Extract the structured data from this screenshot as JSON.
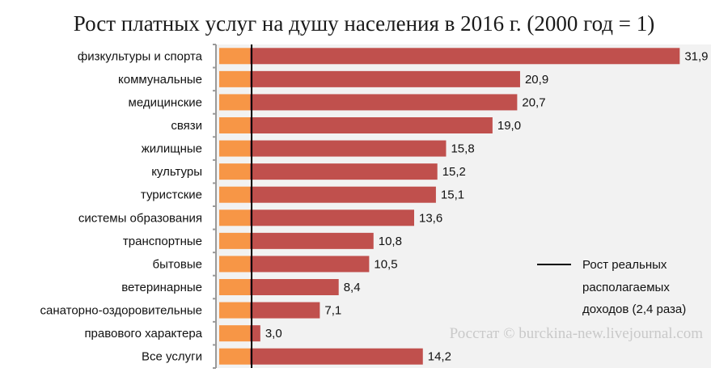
{
  "chart_data": {
    "type": "bar",
    "orientation": "horizontal",
    "title": "Рост платных услуг на душу населения в 2016 г. (2000 год = 1)",
    "categories": [
      "физкультуры и спорта",
      "коммунальные",
      "медицинские",
      "связи",
      "жилищные",
      "культуры",
      "туристские",
      "системы образования",
      "транспортные",
      "бытовые",
      "ветеринарные",
      "санаторно-оздоровительные",
      "правового характера",
      "Все услуги"
    ],
    "values": [
      31.9,
      20.9,
      20.7,
      19.0,
      15.8,
      15.2,
      15.1,
      13.6,
      10.8,
      10.5,
      8.4,
      7.1,
      3.0,
      14.2
    ],
    "value_labels": [
      "31,9",
      "20,9",
      "20,7",
      "19,0",
      "15,8",
      "15,2",
      "15,1",
      "13,6",
      "10,8",
      "10,5",
      "8,4",
      "7,1",
      "3,0",
      "14,2"
    ],
    "xlim": [
      0,
      34
    ],
    "reference_line": {
      "value": 2.4,
      "legend_lines": [
        "Рост реальных",
        "располагаемых",
        "доходов (2,4 раза)"
      ]
    },
    "watermark": "Росстат © burckina-new.livejournal.com",
    "grid": false,
    "legend_position": "bottom-right",
    "colors": {
      "bar": "#c0504d",
      "base": "#f79646",
      "reference": "#000000",
      "plot_bg": "#f2f2f2",
      "axis": "#999999"
    }
  }
}
